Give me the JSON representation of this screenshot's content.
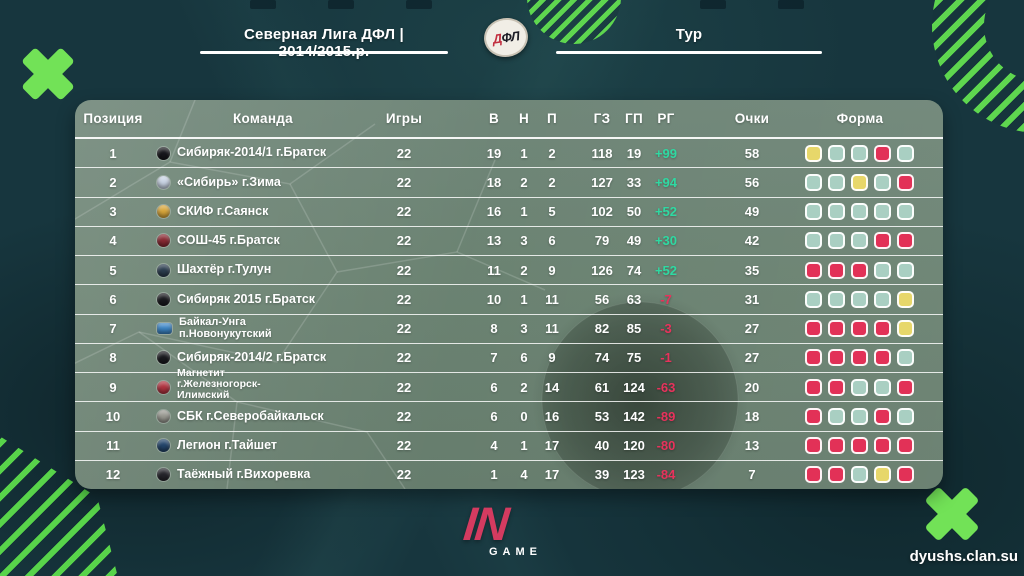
{
  "page": {
    "watermark": "dyushs.clan.su",
    "background_color": "#17363e",
    "accent_green": "#72e257"
  },
  "header": {
    "league_title": "Северная Лига ДФЛ | 2014/2015.р.",
    "round_label": "Тур",
    "logo_primary": "Д",
    "logo_rest": "ФЛ"
  },
  "footer_logo": {
    "main": "IN",
    "sub": "GAME"
  },
  "chart_data": {
    "type": "table",
    "title": "Северная Лига ДФЛ | 2014/2015.р.",
    "columns": [
      "Позиция",
      "Команда",
      "Игры",
      "В",
      "Н",
      "П",
      "ГЗ",
      "ГП",
      "РГ",
      "Очки",
      "Форма"
    ],
    "form_colors": {
      "W": "#a9cfc2",
      "D": "#e7d76a",
      "L": "#e23157"
    },
    "gd_colors": {
      "positive": "#2fd9a2",
      "negative": "#e8325c"
    },
    "rows": [
      {
        "pos": "1",
        "team": "Сибиряк-2014/1 г.Братск",
        "team_lines": [
          "Сибиряк-2014/1 г.Братск"
        ],
        "crest": "#17171c",
        "games": "22",
        "w": "19",
        "d": "1",
        "l": "2",
        "gf": "118",
        "ga": "19",
        "gd": "+99",
        "pts": "58",
        "form": [
          "D",
          "W",
          "W",
          "L",
          "W"
        ]
      },
      {
        "pos": "2",
        "team": "«Сибирь» г.Зима",
        "team_lines": [
          "«Сибирь» г.Зима"
        ],
        "crest": "#c9d4e4",
        "games": "22",
        "w": "18",
        "d": "2",
        "l": "2",
        "gf": "127",
        "ga": "33",
        "gd": "+94",
        "pts": "56",
        "form": [
          "W",
          "W",
          "D",
          "W",
          "L"
        ]
      },
      {
        "pos": "3",
        "team": "СКИФ г.Саянск",
        "team_lines": [
          "СКИФ г.Саянск"
        ],
        "crest": "#d9a73b",
        "games": "22",
        "w": "16",
        "d": "1",
        "l": "5",
        "gf": "102",
        "ga": "50",
        "gd": "+52",
        "pts": "49",
        "form": [
          "W",
          "W",
          "W",
          "W",
          "W"
        ]
      },
      {
        "pos": "4",
        "team": "СОШ-45 г.Братск",
        "team_lines": [
          "СОШ-45 г.Братск"
        ],
        "crest": "#8a2a33",
        "games": "22",
        "w": "13",
        "d": "3",
        "l": "6",
        "gf": "79",
        "ga": "49",
        "gd": "+30",
        "pts": "42",
        "form": [
          "W",
          "W",
          "W",
          "L",
          "L"
        ]
      },
      {
        "pos": "5",
        "team": "Шахтёр г.Тулун",
        "team_lines": [
          "Шахтёр г.Тулун"
        ],
        "crest": "#2c3e50",
        "games": "22",
        "w": "11",
        "d": "2",
        "l": "9",
        "gf": "126",
        "ga": "74",
        "gd": "+52",
        "pts": "35",
        "form": [
          "L",
          "L",
          "L",
          "W",
          "W"
        ]
      },
      {
        "pos": "6",
        "team": "Сибиряк 2015 г.Братск",
        "team_lines": [
          "Сибиряк 2015 г.Братск"
        ],
        "crest": "#1a1a1f",
        "games": "22",
        "w": "10",
        "d": "1",
        "l": "11",
        "gf": "56",
        "ga": "63",
        "gd": "-7",
        "pts": "31",
        "form": [
          "W",
          "W",
          "W",
          "W",
          "D"
        ]
      },
      {
        "pos": "7",
        "team": "Байкал-Унга п.Новонукутский",
        "team_lines": [
          "Байкал-Унга",
          "п.Новонукутский"
        ],
        "crest": "#3d86c6",
        "crest_shape": "rect",
        "games": "22",
        "w": "8",
        "d": "3",
        "l": "11",
        "gf": "82",
        "ga": "85",
        "gd": "-3",
        "pts": "27",
        "form": [
          "L",
          "L",
          "L",
          "L",
          "D"
        ]
      },
      {
        "pos": "8",
        "team": "Сибиряк-2014/2 г.Братск",
        "team_lines": [
          "Сибиряк-2014/2 г.Братск"
        ],
        "crest": "#1a1a1f",
        "games": "22",
        "w": "7",
        "d": "6",
        "l": "9",
        "gf": "74",
        "ga": "75",
        "gd": "-1",
        "pts": "27",
        "form": [
          "L",
          "L",
          "L",
          "L",
          "W"
        ]
      },
      {
        "pos": "9",
        "team": "Магнетит г.Железногорск-Илимский",
        "team_lines": [
          "Магнетит",
          "г.Железногорск-",
          "Илимский"
        ],
        "crest": "#b13441",
        "games": "22",
        "w": "6",
        "d": "2",
        "l": "14",
        "gf": "61",
        "ga": "124",
        "gd": "-63",
        "pts": "20",
        "form": [
          "L",
          "L",
          "W",
          "W",
          "L"
        ]
      },
      {
        "pos": "10",
        "team": "СБК г.Северобайкальск",
        "team_lines": [
          "СБК г.Северобайкальск"
        ],
        "crest": "#9a9a92",
        "games": "22",
        "w": "6",
        "d": "0",
        "l": "16",
        "gf": "53",
        "ga": "142",
        "gd": "-89",
        "pts": "18",
        "form": [
          "L",
          "W",
          "W",
          "L",
          "W"
        ]
      },
      {
        "pos": "11",
        "team": "Легион г.Тайшет",
        "team_lines": [
          "Легион г.Тайшет"
        ],
        "crest": "#23456b",
        "games": "22",
        "w": "4",
        "d": "1",
        "l": "17",
        "gf": "40",
        "ga": "120",
        "gd": "-80",
        "pts": "13",
        "form": [
          "L",
          "L",
          "L",
          "L",
          "L"
        ]
      },
      {
        "pos": "12",
        "team": "Таёжный г.Вихоревка",
        "team_lines": [
          "Таёжный г.Вихоревка"
        ],
        "crest": "#26262c",
        "games": "22",
        "w": "1",
        "d": "4",
        "l": "17",
        "gf": "39",
        "ga": "123",
        "gd": "-84",
        "pts": "7",
        "form": [
          "L",
          "L",
          "W",
          "D",
          "L"
        ]
      }
    ]
  }
}
